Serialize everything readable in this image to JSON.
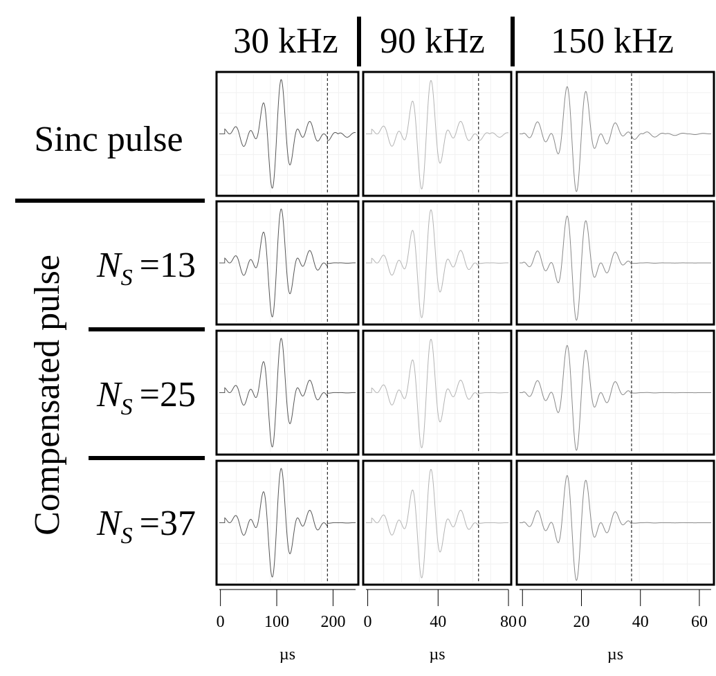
{
  "chart_data": {
    "type": "line",
    "columns": [
      {
        "label": "30 kHz",
        "xlim": [
          -2,
          240
        ],
        "ticks": [
          0,
          100,
          200
        ],
        "tick_labels": [
          "0",
          "100",
          "200"
        ],
        "xlabel": "µs",
        "carrier_khz": 30,
        "dashed_marker_x": 190,
        "pulse_center_x": 100,
        "sidelobe_spacing_x": 42,
        "color": "#555555"
      },
      {
        "label": "90 kHz",
        "xlim": [
          -1,
          80
        ],
        "ticks": [
          0,
          40,
          80
        ],
        "tick_labels": [
          "0",
          "40",
          "80"
        ],
        "xlabel": "µs",
        "carrier_khz": 90,
        "dashed_marker_x": 63,
        "pulse_center_x": 33,
        "sidelobe_spacing_x": 14,
        "color": "#b3b3b3"
      },
      {
        "label": "150 kHz",
        "xlim": [
          -1,
          64
        ],
        "ticks": [
          0,
          20,
          40,
          60
        ],
        "tick_labels": [
          "0",
          "20",
          "40",
          "60"
        ],
        "xlabel": "µs",
        "carrier_khz": 150,
        "dashed_marker_x": 37,
        "pulse_center_x": 18,
        "sidelobe_spacing_x": 8.5,
        "color": "#888888"
      }
    ],
    "rows": [
      {
        "label": "Sinc pulse",
        "ns": null,
        "residual_tail": true
      },
      {
        "label": "N_S =13",
        "ns": 13,
        "residual_tail": false
      },
      {
        "label": "N_S =25",
        "ns": 25,
        "residual_tail": false
      },
      {
        "label": "N_S =37",
        "ns": 37,
        "residual_tail": false
      }
    ],
    "row_group_label": "Compensated pulse",
    "grid": true
  },
  "labels": {
    "col_headers": [
      "30 kHz",
      "90 kHz",
      "150 kHz"
    ],
    "sinc_row": "Sinc pulse",
    "group": "Compensated pulse",
    "ns_symbol": "N",
    "ns_sub": "S",
    "ns_values": [
      "=13",
      "=25",
      "=37"
    ],
    "xlabel": "µs"
  }
}
